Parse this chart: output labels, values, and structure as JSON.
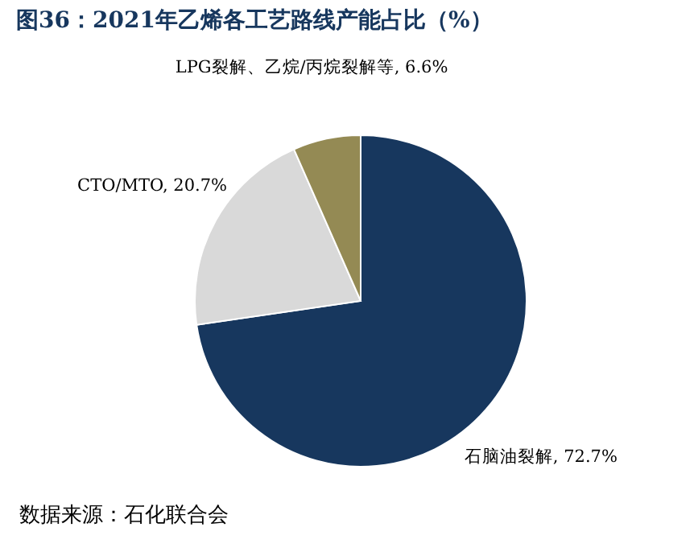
{
  "chart_data": {
    "type": "pie",
    "title": "图36：2021年乙烯各工艺路线产能占比（%）",
    "categories": [
      "石脑油裂解",
      "CTO/MTO",
      "LPG裂解、乙烷/丙烷裂解等"
    ],
    "values": [
      72.7,
      20.7,
      6.6
    ],
    "colors": [
      "#17375e",
      "#d9d9d9",
      "#948a54"
    ],
    "value_labels": [
      "72.7%",
      "20.7%",
      "6.6%"
    ],
    "legend": false,
    "annotations": [
      "数据来源：石化联合会"
    ]
  }
}
